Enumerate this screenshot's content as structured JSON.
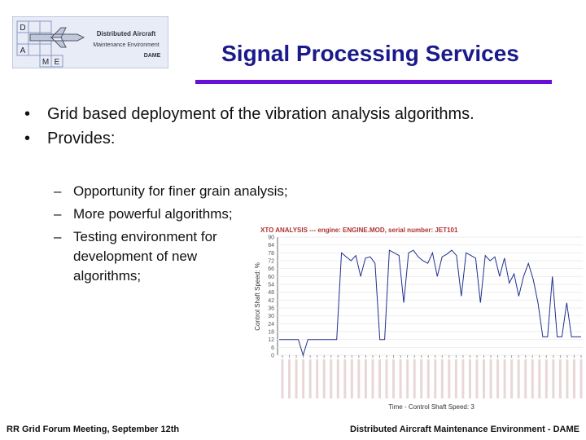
{
  "logo": {
    "letters": [
      "D",
      "A",
      "M",
      "E"
    ],
    "lines": [
      "Distributed Aircraft",
      "Maintenance Environment",
      "DAME"
    ]
  },
  "title": "Signal Processing Services",
  "bullets": [
    "Grid based deployment of the vibration analysis algorithms.",
    "Provides:"
  ],
  "sub_bullets": [
    "Opportunity for finer grain analysis;",
    "More powerful algorithms;",
    "Testing environment for development of new algorithms;"
  ],
  "figure": {
    "type": "line",
    "title": "XTO ANALYSIS --- engine: ENGINE.MOD, serial number: JET101",
    "ylabel": "Control Shaft Speed: %",
    "xlabel": "Time - Control Shaft Speed: 3",
    "ylim": [
      0,
      90
    ],
    "yticks": [
      0,
      6,
      12,
      18,
      24,
      30,
      36,
      42,
      48,
      54,
      60,
      66,
      72,
      78,
      84,
      90
    ],
    "color": "#1f2f8f",
    "values": [
      12,
      12,
      12,
      12,
      12,
      0,
      12,
      12,
      12,
      12,
      12,
      12,
      12,
      78,
      75,
      72,
      76,
      60,
      74,
      75,
      70,
      12,
      12,
      80,
      78,
      76,
      40,
      78,
      80,
      75,
      72,
      70,
      78,
      60,
      75,
      77,
      80,
      76,
      45,
      78,
      76,
      74,
      40,
      76,
      72,
      75,
      60,
      74,
      55,
      62,
      45,
      60,
      70,
      58,
      40,
      14,
      14,
      60,
      14,
      14,
      40,
      14,
      14,
      14
    ]
  },
  "footer": {
    "left": "RR Grid Forum Meeting, September 12th",
    "right": "Distributed Aircraft Maintenance Environment - DAME"
  }
}
